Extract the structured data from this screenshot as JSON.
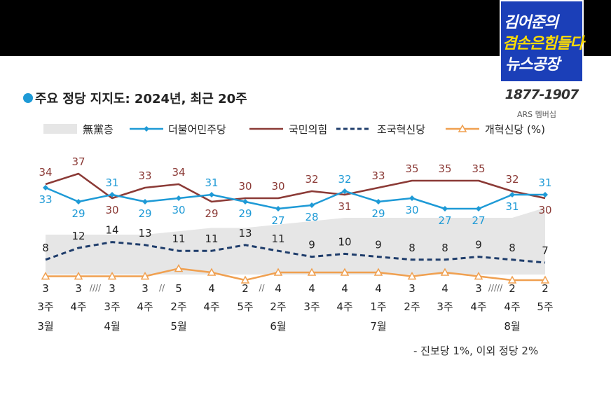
{
  "title": "주요 정당 지지도: 2024년, 최근 20주",
  "broadcast": {
    "logo_line1": "김어준의",
    "logo_line2": "겸손은힘들다",
    "logo_line3": "뉴스공장",
    "phone": "1877-1907",
    "phone_sub": "ARS 멤버십"
  },
  "colors": {
    "undecided_area": "#e6e6e6",
    "democratic": "#1e9ad6",
    "ppp": "#8b3a36",
    "rebuilding": "#1f3d6b",
    "reform": "#f0a050",
    "title_dot": "#1e9ad6"
  },
  "note": "- 진보당 1%, 이외 정당 2%",
  "chart_data": {
    "type": "line",
    "title": "주요 정당 지지도: 2024년, 최근 20주",
    "x": [
      "3주",
      "4주",
      "3주",
      "4주",
      "2주",
      "4주",
      "5주",
      "2주",
      "3주",
      "4주",
      "1주",
      "2주",
      "3주",
      "4주",
      "4주",
      "5주"
    ],
    "month_labels": [
      {
        "index": 0,
        "label": "3월"
      },
      {
        "index": 2,
        "label": "4월"
      },
      {
        "index": 4,
        "label": "5월"
      },
      {
        "index": 7,
        "label": "6월"
      },
      {
        "index": 10,
        "label": "7월"
      },
      {
        "index": 14,
        "label": "8월"
      }
    ],
    "gap_markers": [
      {
        "after_index": 1,
        "label": "////"
      },
      {
        "after_index": 3,
        "label": "//"
      },
      {
        "after_index": 6,
        "label": "//"
      },
      {
        "after_index": 13,
        "label": "/////"
      }
    ],
    "series": [
      {
        "name": "無黨층",
        "style": "area",
        "values": [
          25,
          25,
          25,
          25,
          26,
          27,
          27,
          28,
          29,
          30,
          30,
          30,
          30,
          30,
          30,
          33
        ],
        "labels_shown": false
      },
      {
        "name": "더불어민주당",
        "style": "line-diamond",
        "values": [
          33,
          29,
          31,
          29,
          30,
          31,
          29,
          27,
          28,
          32,
          29,
          30,
          27,
          27,
          31,
          31
        ]
      },
      {
        "name": "국민의힘",
        "style": "line",
        "values": [
          34,
          37,
          30,
          33,
          34,
          29,
          30,
          30,
          32,
          31,
          33,
          35,
          35,
          35,
          32,
          30
        ]
      },
      {
        "name": "조국혁신당",
        "style": "dashed-line",
        "values": [
          8,
          12,
          14,
          13,
          11,
          11,
          13,
          11,
          9,
          10,
          9,
          8,
          8,
          9,
          8,
          7
        ]
      },
      {
        "name": "개혁신당 (%)",
        "style": "line-triangle",
        "values": [
          3,
          3,
          3,
          3,
          5,
          4,
          2,
          4,
          4,
          4,
          4,
          3,
          4,
          3,
          2,
          2
        ]
      }
    ],
    "legend_position": "top",
    "grid": false
  }
}
